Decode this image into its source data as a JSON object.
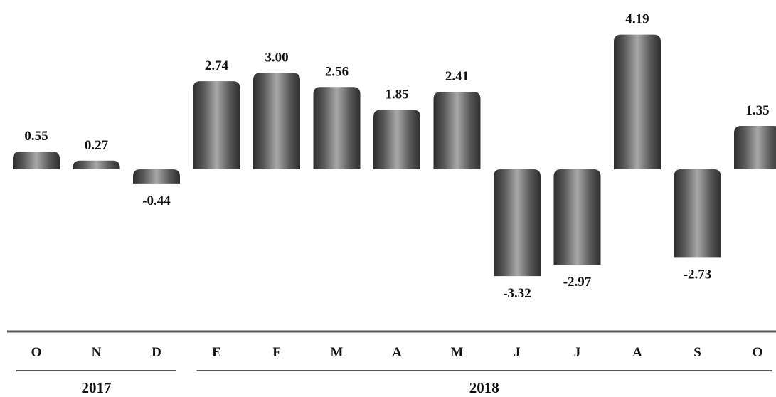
{
  "chart_data": {
    "type": "bar",
    "title": "",
    "xlabel": "",
    "ylabel": "",
    "ylim": [
      -3.32,
      4.19
    ],
    "grid": false,
    "categories": [
      "O",
      "N",
      "D",
      "E",
      "F",
      "M",
      "A",
      "M",
      "J",
      "J",
      "A",
      "S",
      "O"
    ],
    "values": [
      0.55,
      0.27,
      -0.44,
      2.74,
      3.0,
      2.56,
      1.85,
      2.41,
      -3.32,
      -2.97,
      4.19,
      -2.73,
      1.35
    ],
    "value_labels": [
      "0.55",
      "0.27",
      "-0.44",
      "2.74",
      "3.00",
      "2.56",
      "1.85",
      "2.41",
      "-3.32",
      "-2.97",
      "4.19",
      "-2.73",
      "1.35"
    ],
    "groups": [
      {
        "label": "2017",
        "first": 0,
        "last": 2
      },
      {
        "label": "2018",
        "first": 3,
        "last": 12
      }
    ],
    "colors": {
      "bar_dark": "#2e2e2e",
      "bar_mid": "#6e6e6e",
      "bar_light": "#a8a8a8",
      "axis": "#555555"
    }
  }
}
